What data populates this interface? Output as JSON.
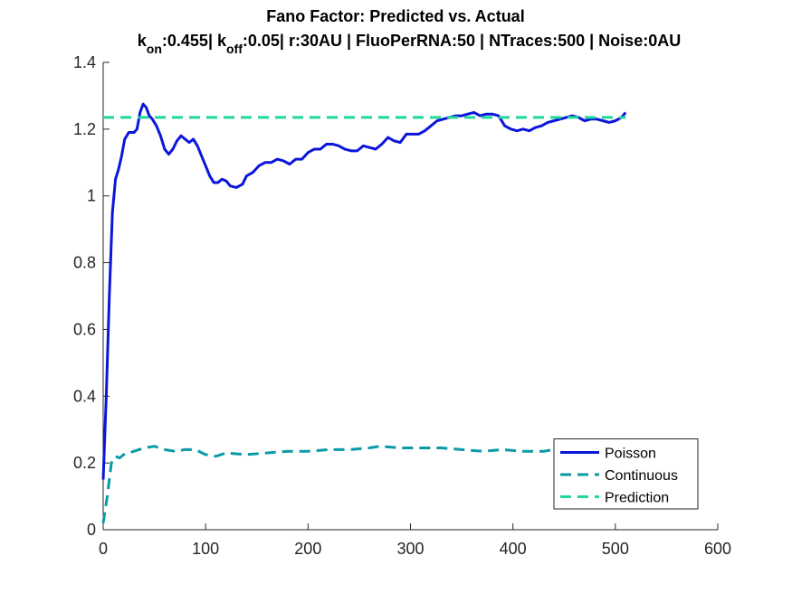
{
  "chart_data": {
    "type": "line",
    "title": "Fano Factor: Predicted vs. Actual",
    "subtitle_parts": [
      {
        "text": "k"
      },
      {
        "text": "on",
        "sub": true
      },
      {
        "text": ":0.455| k"
      },
      {
        "text": "off",
        "sub": true
      },
      {
        "text": ":0.05| r:30AU | FluoPerRNA:50 | NTraces:500 | Noise:0AU"
      }
    ],
    "xlim": [
      0,
      600
    ],
    "xticks": [
      0,
      100,
      200,
      300,
      400,
      500,
      600
    ],
    "ylim": [
      0,
      1.4
    ],
    "yticks": [
      0,
      0.2,
      0.4,
      0.6,
      0.8,
      1,
      1.2,
      1.4
    ],
    "legend": "lower right",
    "series": [
      {
        "name": "Poisson",
        "color": "#0b16d9",
        "line_style": "solid",
        "x": [
          0,
          3,
          6,
          9,
          12,
          15,
          18,
          21,
          25,
          30,
          33,
          36,
          39,
          42,
          45,
          48,
          52,
          56,
          60,
          64,
          68,
          72,
          76,
          80,
          84,
          88,
          92,
          96,
          100,
          104,
          108,
          112,
          116,
          120,
          124,
          130,
          136,
          140,
          146,
          152,
          158,
          164,
          170,
          176,
          182,
          188,
          194,
          200,
          206,
          212,
          218,
          224,
          230,
          236,
          242,
          248,
          254,
          260,
          266,
          272,
          278,
          284,
          290,
          296,
          302,
          308,
          314,
          320,
          326,
          332,
          338,
          344,
          350,
          356,
          362,
          368,
          374,
          380,
          386,
          392,
          398,
          404,
          410,
          416,
          422,
          428,
          434,
          440,
          446,
          452,
          458,
          464,
          470,
          476,
          482,
          488,
          494,
          500,
          506,
          510
        ],
        "values": [
          0.15,
          0.4,
          0.7,
          0.95,
          1.05,
          1.08,
          1.12,
          1.17,
          1.19,
          1.19,
          1.2,
          1.25,
          1.275,
          1.265,
          1.24,
          1.23,
          1.21,
          1.18,
          1.14,
          1.125,
          1.14,
          1.165,
          1.18,
          1.17,
          1.16,
          1.17,
          1.15,
          1.12,
          1.09,
          1.06,
          1.04,
          1.04,
          1.05,
          1.045,
          1.03,
          1.025,
          1.035,
          1.06,
          1.07,
          1.09,
          1.1,
          1.1,
          1.11,
          1.105,
          1.095,
          1.11,
          1.11,
          1.13,
          1.14,
          1.14,
          1.155,
          1.155,
          1.15,
          1.14,
          1.135,
          1.135,
          1.15,
          1.145,
          1.14,
          1.155,
          1.175,
          1.165,
          1.16,
          1.185,
          1.185,
          1.185,
          1.195,
          1.21,
          1.225,
          1.23,
          1.235,
          1.24,
          1.24,
          1.245,
          1.25,
          1.24,
          1.245,
          1.245,
          1.24,
          1.21,
          1.2,
          1.195,
          1.2,
          1.195,
          1.205,
          1.21,
          1.22,
          1.225,
          1.23,
          1.235,
          1.24,
          1.235,
          1.225,
          1.23,
          1.23,
          1.225,
          1.22,
          1.225,
          1.235,
          1.25
        ]
      },
      {
        "name": "Continuous",
        "color": "#0a9aa6",
        "line_style": "dashed",
        "x": [
          0,
          4,
          8,
          12,
          16,
          20,
          25,
          30,
          40,
          50,
          60,
          70,
          80,
          90,
          100,
          110,
          120,
          140,
          160,
          180,
          200,
          220,
          240,
          260,
          270,
          290,
          310,
          330,
          350,
          370,
          390,
          410,
          430,
          440,
          470,
          510
        ],
        "values": [
          0.02,
          0.1,
          0.2,
          0.22,
          0.215,
          0.225,
          0.23,
          0.235,
          0.245,
          0.25,
          0.24,
          0.235,
          0.24,
          0.24,
          0.225,
          0.22,
          0.23,
          0.225,
          0.23,
          0.235,
          0.235,
          0.24,
          0.24,
          0.245,
          0.25,
          0.245,
          0.245,
          0.245,
          0.24,
          0.235,
          0.24,
          0.235,
          0.235,
          0.24,
          0.24,
          0.24
        ]
      },
      {
        "name": "Prediction",
        "color": "#1fd89a",
        "line_style": "dashed",
        "x": [
          0,
          510
        ],
        "values": [
          1.235,
          1.235
        ]
      }
    ]
  }
}
